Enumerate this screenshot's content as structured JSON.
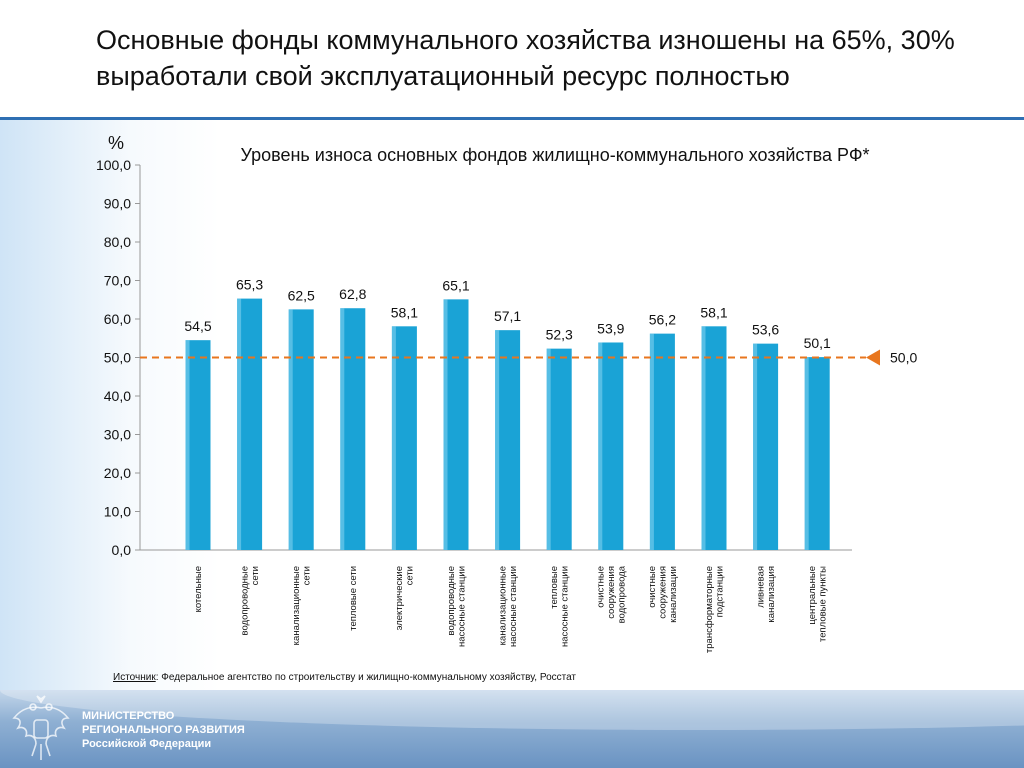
{
  "slide": {
    "headline": "Основные фонды коммунального хозяйства изношены на 65%, 30% выработали свой эксплуатационный ресурс полностью",
    "source_label": "Источник",
    "source_text": ": Федеральное агентство по строительству и жилищно-коммунальному хозяйству, Росстат",
    "ministry": "МИНИСТЕРСТВО\nРЕГИОНАЛЬНОГО РАЗВИТИЯ\nРоссийской Федерации"
  },
  "chart_data": {
    "type": "bar",
    "title": "Уровень износа основных фондов жилищно-коммунального хозяйства РФ*",
    "ylabel": "%",
    "xlabel": "",
    "ylim": [
      0,
      100
    ],
    "yticks": [
      "0,0",
      "10,0",
      "20,0",
      "30,0",
      "40,0",
      "50,0",
      "60,0",
      "70,0",
      "80,0",
      "90,0",
      "100,0"
    ],
    "categories": [
      "котельные",
      "водопроводные сети",
      "канализационные сети",
      "тепловые сети",
      "электрические сети",
      "водопроводные насосные станции",
      "канализационные насосные станции",
      "тепловые насосные станции",
      "очистные сооружения водопровода",
      "очистные сооружения канализации",
      "трансформаторные подстанции",
      "ливневая канализация",
      "центральные тепловые пункты"
    ],
    "category_lines": [
      [
        "котельные"
      ],
      [
        "водопроводные",
        "сети"
      ],
      [
        "канализационные",
        "сети"
      ],
      [
        "тепловые сети"
      ],
      [
        "электрические",
        "сети"
      ],
      [
        "водопроводные",
        "насосные станции"
      ],
      [
        "канализационные",
        "насосные станции"
      ],
      [
        "тепловые",
        "насосные станции"
      ],
      [
        "очистные",
        "сооружения",
        "водопровода"
      ],
      [
        "очистные",
        "сооружения",
        "канализации"
      ],
      [
        "трансформаторные",
        "подстанции"
      ],
      [
        "ливневая",
        "канализация"
      ],
      [
        "центральные",
        "тепловые пункты"
      ]
    ],
    "values": [
      54.5,
      65.3,
      62.5,
      62.8,
      58.1,
      65.1,
      57.1,
      52.3,
      53.9,
      56.2,
      58.1,
      53.6,
      50.1
    ],
    "value_labels": [
      "54,5",
      "65,3",
      "62,5",
      "62,8",
      "58,1",
      "65,1",
      "57,1",
      "52,3",
      "53,9",
      "56,2",
      "58,1",
      "53,6",
      "50,1"
    ],
    "reference_line": {
      "value": 50.0,
      "label": "50,0",
      "color": "#e8761e"
    },
    "bar_color": "#1aa3d6",
    "grid": false
  }
}
